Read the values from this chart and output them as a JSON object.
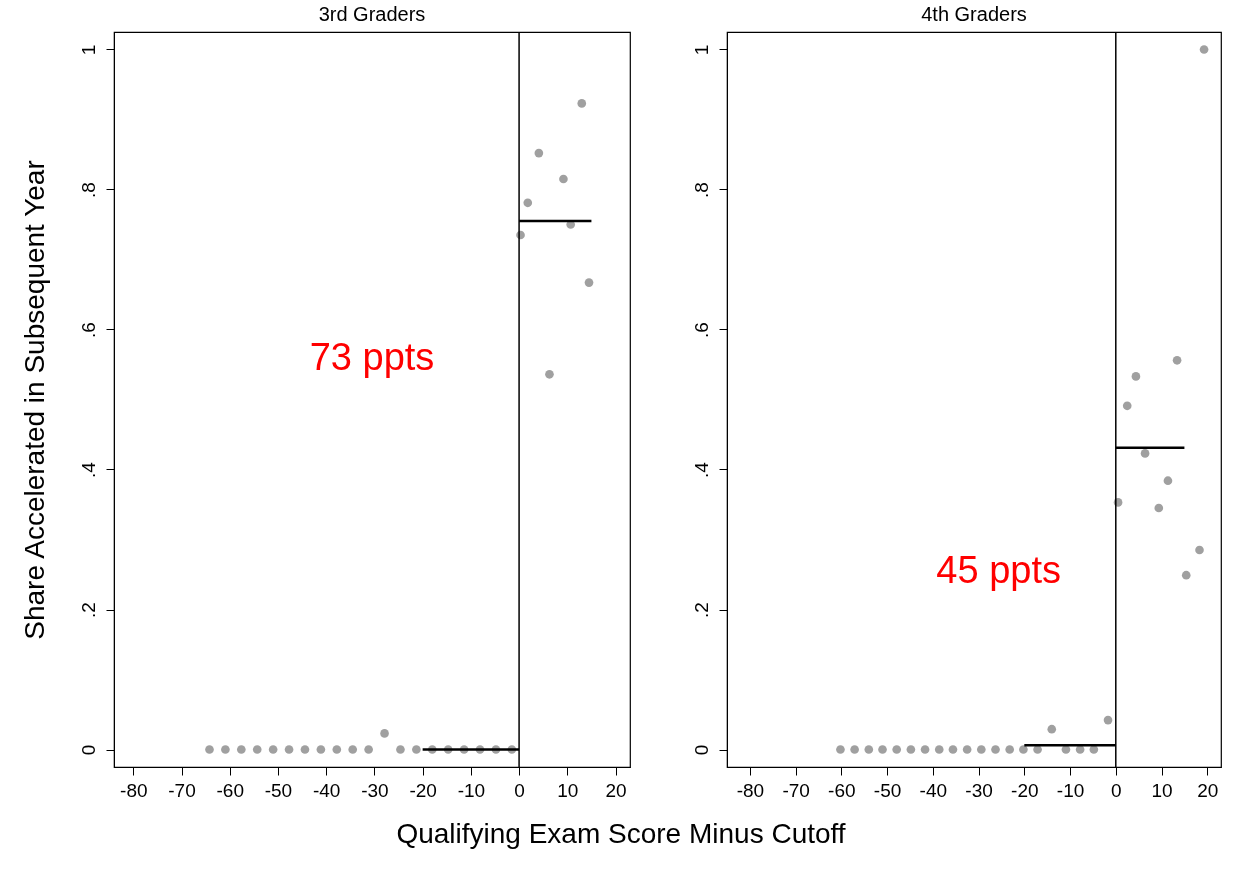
{
  "chart_data": [
    {
      "type": "scatter",
      "title": "3rd Graders",
      "ylabel": "Share Accelerated in Subsequent Year",
      "xlabel": "Qualifying Exam Score Minus Cutoff",
      "xlim": [
        -84,
        23
      ],
      "ylim": [
        -0.025,
        1.025
      ],
      "xticks": [
        -80,
        -70,
        -60,
        -50,
        -40,
        -30,
        -20,
        -10,
        0,
        10,
        20
      ],
      "yticks": [
        {
          "value": 0,
          "label": "0"
        },
        {
          "value": 0.2,
          "label": ".2"
        },
        {
          "value": 0.4,
          "label": ".4"
        },
        {
          "value": 0.6,
          "label": ".6"
        },
        {
          "value": 0.8,
          "label": ".8"
        },
        {
          "value": 1,
          "label": "1"
        }
      ],
      "grid": false,
      "series": [
        {
          "type": "scatter",
          "marker": "circle",
          "color": "#a0a0a0",
          "x": [
            -64.2,
            -60.9,
            -57.6,
            -54.3,
            -51,
            -47.7,
            -44.4,
            -41.1,
            -37.8,
            -34.5,
            -31.2,
            -27.9,
            -24.6,
            -21.3,
            -18,
            -14.7,
            -11.4,
            -8.1,
            -4.8,
            -1.5,
            0.3,
            1.8,
            4.1,
            6.3,
            9.2,
            10.7,
            13,
            14.5
          ],
          "values": [
            0,
            0,
            0,
            0,
            0,
            0,
            0,
            0,
            0,
            0,
            0,
            0.023,
            0,
            0,
            0,
            0,
            0,
            0,
            0,
            0,
            0.735,
            0.781,
            0.852,
            0.536,
            0.815,
            0.75,
            0.923,
            0.667
          ]
        },
        {
          "type": "line",
          "color": "#000000",
          "x": [
            -20,
            0
          ],
          "values": [
            0,
            0
          ]
        },
        {
          "type": "line",
          "color": "#000000",
          "x": [
            0,
            15
          ],
          "values": [
            0.755,
            0.755
          ]
        }
      ],
      "ref_lines": [
        {
          "axis": "x",
          "value": 0,
          "color": "#000000"
        }
      ],
      "annotations": [
        "73 ppts"
      ]
    },
    {
      "type": "scatter",
      "title": "4th Graders",
      "xlim": [
        -85,
        23
      ],
      "ylim": [
        -0.025,
        1.025
      ],
      "xticks": [
        -80,
        -70,
        -60,
        -50,
        -40,
        -30,
        -20,
        -10,
        0,
        10,
        20
      ],
      "yticks": [
        {
          "value": 0,
          "label": "0"
        },
        {
          "value": 0.2,
          "label": ".2"
        },
        {
          "value": 0.4,
          "label": ".4"
        },
        {
          "value": 0.6,
          "label": ".6"
        },
        {
          "value": 0.8,
          "label": ".8"
        },
        {
          "value": 1,
          "label": "1"
        }
      ],
      "grid": false,
      "series": [
        {
          "type": "scatter",
          "marker": "circle",
          "color": "#a0a0a0",
          "x": [
            -60.2,
            -57.1,
            -54,
            -51,
            -47.9,
            -44.8,
            -41.7,
            -38.6,
            -35.6,
            -32.5,
            -29.4,
            -26.3,
            -23.2,
            -20.2,
            -17.1,
            -14,
            -10.9,
            -7.8,
            -4.8,
            -1.7,
            0.5,
            2.5,
            4.4,
            6.4,
            9.4,
            11.4,
            13.4,
            15.4,
            18.3,
            19.3
          ],
          "values": [
            0,
            0,
            0,
            0,
            0,
            0,
            0,
            0,
            0,
            0,
            0,
            0,
            0,
            0,
            0,
            0.029,
            0,
            0,
            0,
            0.042,
            0.353,
            0.491,
            0.533,
            0.423,
            0.345,
            0.384,
            0.556,
            0.249,
            0.285,
            1
          ]
        },
        {
          "type": "line",
          "color": "#000000",
          "x": [
            -20,
            0
          ],
          "values": [
            0.006,
            0.006
          ]
        },
        {
          "type": "line",
          "color": "#000000",
          "x": [
            0,
            15
          ],
          "values": [
            0.431,
            0.431
          ]
        }
      ],
      "ref_lines": [
        {
          "axis": "x",
          "value": 0,
          "color": "#000000"
        }
      ],
      "annotations": [
        "45 ppts"
      ]
    }
  ]
}
